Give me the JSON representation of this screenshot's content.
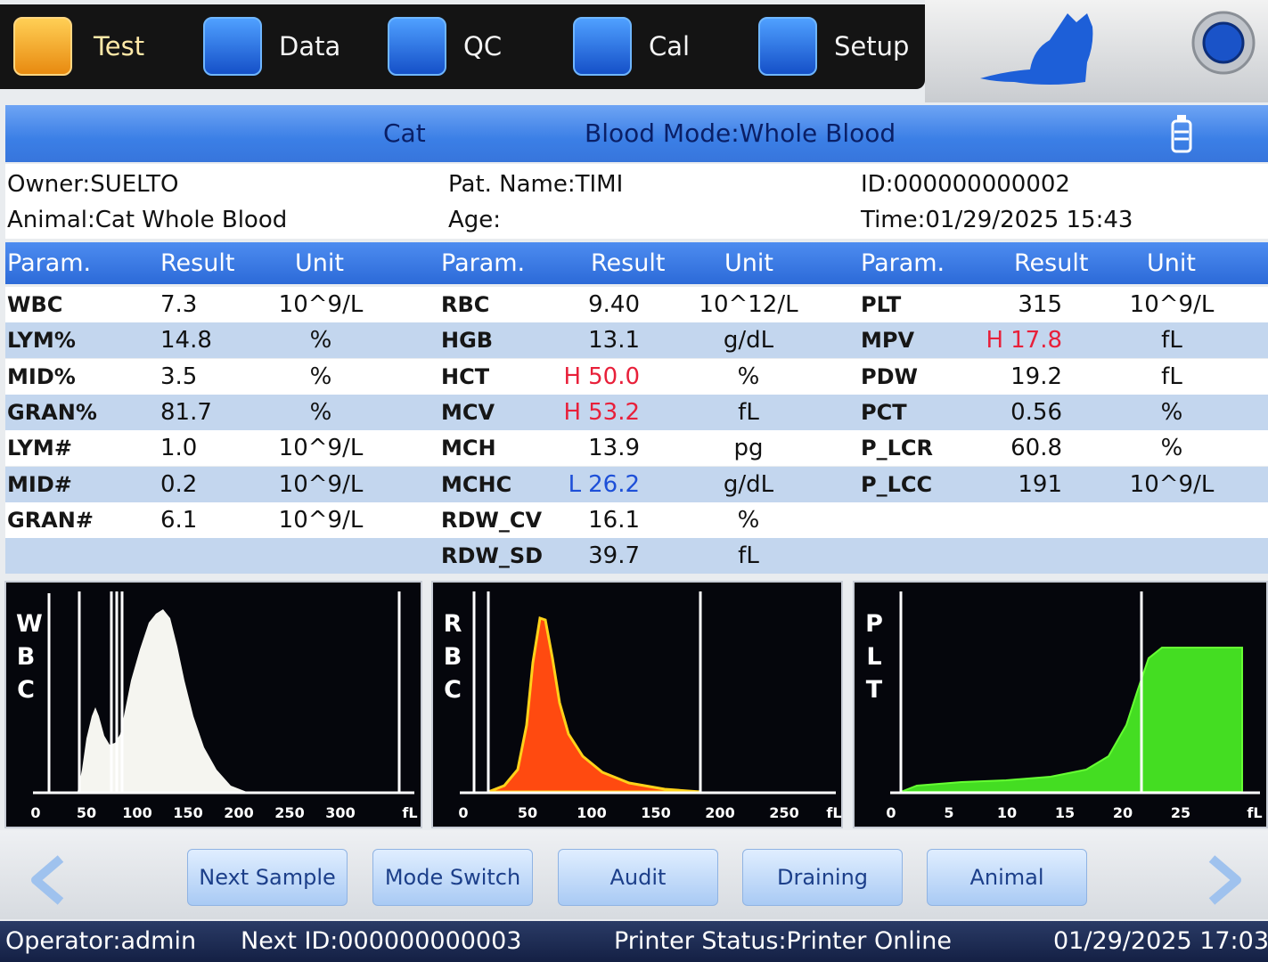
{
  "nav": {
    "tabs": [
      "Test",
      "Data",
      "QC",
      "Cal",
      "Setup"
    ]
  },
  "mode_bar": {
    "species": "Cat",
    "blood_mode": "Blood Mode:Whole Blood"
  },
  "patient": {
    "owner": "Owner:SUELTO",
    "animal": "Animal:Cat Whole Blood",
    "pat_name": "Pat. Name:TIMI",
    "age": "Age:",
    "id": "ID:000000000002",
    "time": "Time:01/29/2025 15:43"
  },
  "results": {
    "headers": [
      "Param.",
      "Result",
      "Unit"
    ],
    "columns": [
      [
        {
          "param": "WBC",
          "result": "7.3",
          "unit": "10^9/L"
        },
        {
          "param": "LYM%",
          "result": "14.8",
          "unit": "%"
        },
        {
          "param": "MID%",
          "result": "3.5",
          "unit": "%"
        },
        {
          "param": "GRAN%",
          "result": "81.7",
          "unit": "%"
        },
        {
          "param": "LYM#",
          "result": "1.0",
          "unit": "10^9/L"
        },
        {
          "param": "MID#",
          "result": "0.2",
          "unit": "10^9/L"
        },
        {
          "param": "GRAN#",
          "result": "6.1",
          "unit": "10^9/L"
        }
      ],
      [
        {
          "param": "RBC",
          "result": "9.40",
          "unit": "10^12/L"
        },
        {
          "param": "HGB",
          "result": "13.1",
          "unit": "g/dL"
        },
        {
          "param": "HCT",
          "flag": "H",
          "result": "50.0",
          "unit": "%"
        },
        {
          "param": "MCV",
          "flag": "H",
          "result": "53.2",
          "unit": "fL"
        },
        {
          "param": "MCH",
          "result": "13.9",
          "unit": "pg"
        },
        {
          "param": "MCHC",
          "flag": "L",
          "result": "26.2",
          "unit": "g/dL"
        },
        {
          "param": "RDW_CV",
          "result": "16.1",
          "unit": "%"
        },
        {
          "param": "RDW_SD",
          "result": "39.7",
          "unit": "fL"
        }
      ],
      [
        {
          "param": "PLT",
          "result": "315",
          "unit": "10^9/L"
        },
        {
          "param": "MPV",
          "flag": "H",
          "result": "17.8",
          "unit": "fL"
        },
        {
          "param": "PDW",
          "result": "19.2",
          "unit": "fL"
        },
        {
          "param": "PCT",
          "result": "0.56",
          "unit": "%"
        },
        {
          "param": "P_LCR",
          "result": "60.8",
          "unit": "%"
        },
        {
          "param": "P_LCC",
          "result": "191",
          "unit": "10^9/L"
        }
      ]
    ]
  },
  "histograms": [
    {
      "label": "WBC",
      "x_ticks": [
        0,
        50,
        100,
        150,
        200,
        250,
        300
      ],
      "unit": "fL"
    },
    {
      "label": "RBC",
      "x_ticks": [
        0,
        50,
        100,
        150,
        200,
        250
      ],
      "unit": "fL"
    },
    {
      "label": "PLT",
      "x_ticks": [
        0,
        5,
        10,
        15,
        20,
        25
      ],
      "unit": "fL"
    }
  ],
  "buttons": [
    "Next Sample",
    "Mode Switch",
    "Audit",
    "Draining",
    "Animal"
  ],
  "status": {
    "operator": "Operator:admin",
    "next_id": "Next ID:000000000003",
    "printer": "Printer Status:Printer Online",
    "datetime": "01/29/2025 17:03"
  }
}
